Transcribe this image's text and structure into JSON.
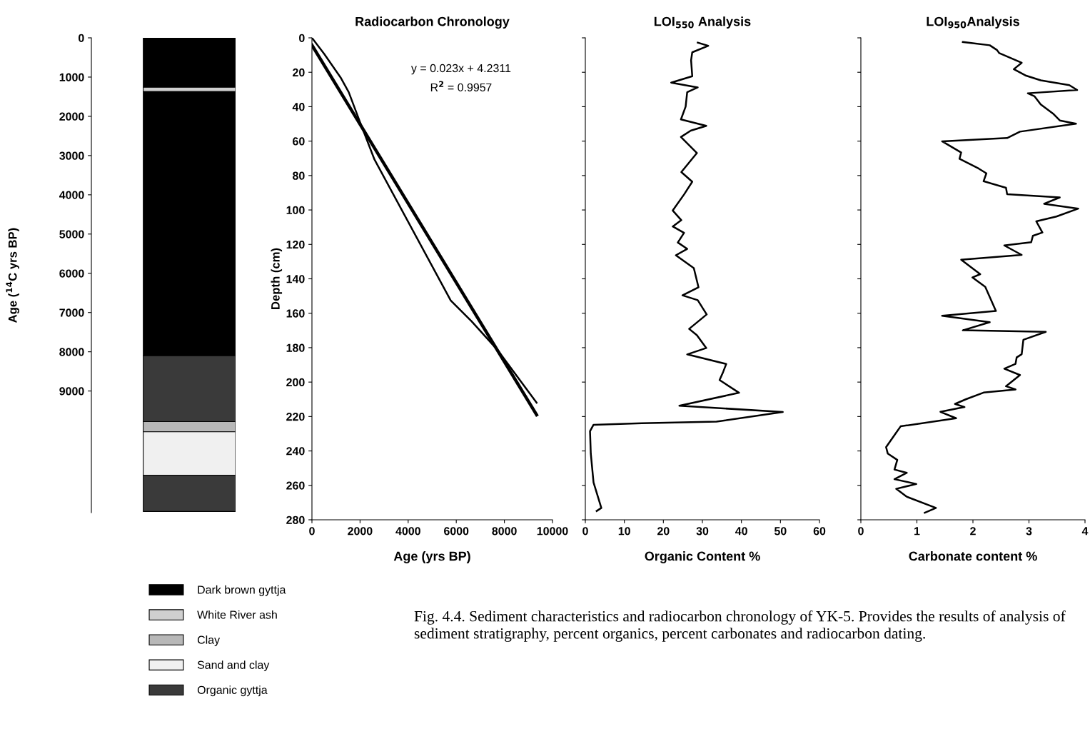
{
  "chart_data": [
    {
      "type": "bar",
      "stacked": true,
      "categories": [
        null
      ],
      "ylabel": "Age ($^{14}$C yrs BP)",
      "ylim": [
        12100,
        0
      ],
      "yticks": [
        0,
        1000,
        2000,
        3000,
        4000,
        5000,
        6000,
        7000,
        8000,
        9000
      ],
      "tick_labels": "y",
      "legend": "bottom",
      "series": [
        {
          "name": "Dark brown gyttja",
          "color": "#000000",
          "values": [
            1260
          ]
        },
        {
          "name": "White River ash",
          "color": "#d0d0d0",
          "values": [
            110
          ]
        },
        {
          "color": "#000000",
          "values": [
            6730
          ]
        },
        {
          "color": "#3a3a3a",
          "values": [
            1680
          ]
        },
        {
          "name": "Clay",
          "color": "#b8b8b8",
          "values": [
            260
          ]
        },
        {
          "name": "Sand and clay",
          "color": "#f0f0f0",
          "values": [
            1110
          ]
        },
        {
          "name": "Organic gyttja",
          "color": "#3a3a3a",
          "values": [
            920
          ]
        }
      ]
    },
    {
      "type": "line",
      "title": "Radiocarbon Chronology",
      "xlabel": "Age (yrs BP)",
      "ylabel": "Depth (cm)",
      "xlim": [
        0,
        10000
      ],
      "xticks": [
        0,
        2000,
        4000,
        6000,
        8000,
        10000
      ],
      "ylim": [
        280,
        0
      ],
      "yticks": [
        0,
        20,
        40,
        60,
        80,
        100,
        120,
        140,
        160,
        180,
        200,
        220,
        240,
        260,
        280
      ],
      "annotations": [
        "y = 0.023x + 4.2311",
        "R$^{2}$ = 0.9957"
      ],
      "series": [
        {
          "color": "#000000",
          "x": [
            0,
            510,
            1190,
            1530,
            2000,
            2600,
            5770,
            6640,
            7720,
            9340
          ],
          "values": [
            0,
            9.3,
            23,
            31.6,
            49,
            70.7,
            152.6,
            164.7,
            181.4,
            212
          ]
        },
        {
          "color": "#000000",
          "x": [
            0,
            9340
          ],
          "values": [
            4.2,
            219
          ]
        }
      ]
    },
    {
      "type": "line",
      "title": "LOI$_{550}$ Analysis",
      "xlabel": "Organic Content %",
      "xlim": [
        0,
        60
      ],
      "xticks": [
        0,
        10,
        20,
        30,
        40,
        50,
        60
      ],
      "ylim": [
        280,
        0
      ],
      "yticks": [
        0,
        20,
        40,
        60,
        80,
        100,
        120,
        140,
        160,
        180,
        200,
        220,
        240,
        260,
        280
      ],
      "tick_labels": "x",
      "series": [
        {
          "color": "#000000",
          "x": [
            28.8,
            31.5,
            27.4,
            27.1,
            27.4,
            22.0,
            28.8,
            26.1,
            25.7,
            24.5,
            31.0,
            27.0,
            24.5,
            28.6,
            24.6,
            27.4,
            25.3,
            22.4,
            24.6,
            22.4,
            25.3,
            23.7,
            26.1,
            23.2,
            27.8,
            29.0,
            24.9,
            28.8,
            31.1,
            26.6,
            28.6,
            31.0,
            26.1,
            36.1,
            35.3,
            34.4,
            39.4,
            24.1,
            50.6,
            33.6,
            14.5,
            2.1,
            1.2,
            1.4,
            2.1,
            4.1,
            2.9
          ],
          "values": [
            2.8,
            4.6,
            8.4,
            13,
            22.3,
            26,
            28.8,
            31.6,
            40,
            47.4,
            51.1,
            53.9,
            57.6,
            66.9,
            78,
            83.6,
            91,
            100.3,
            105.9,
            109.6,
            113.3,
            118.9,
            122.6,
            126.3,
            133.8,
            144.9,
            149.6,
            152.4,
            160.7,
            169.1,
            172.8,
            180.2,
            183.9,
            189.5,
            194.2,
            198.8,
            206.2,
            213.7,
            217.4,
            223,
            223.9,
            224.8,
            228.5,
            241.5,
            258.3,
            273.1,
            274.9
          ]
        }
      ]
    },
    {
      "type": "line",
      "title": "LOI$_{950}$Analysis",
      "xlabel": "Carbonate content %",
      "xlim": [
        0,
        4
      ],
      "xticks": [
        0,
        1,
        2,
        3,
        4
      ],
      "ylim": [
        280,
        0
      ],
      "yticks": [
        0,
        20,
        40,
        60,
        80,
        100,
        120,
        140,
        160,
        180,
        200,
        220,
        240,
        260,
        280
      ],
      "tick_labels": "x",
      "annotations": [
        "Fig. 4.4. Sediment characteristics and radiocarbon chronology of YK-5. Provides the results of analysis of sediment stratigraphy, percent organics, percent carbonates and radiocarbon dating."
      ],
      "series": [
        {
          "color": "#000000",
          "x": [
            1.82,
            2.3,
            2.43,
            2.47,
            2.87,
            2.73,
            2.95,
            3.21,
            3.72,
            3.86,
            2.98,
            3.1,
            3.21,
            3.44,
            3.55,
            3.84,
            2.84,
            2.61,
            1.45,
            1.79,
            1.76,
            2.1,
            2.24,
            2.19,
            2.59,
            2.61,
            3.55,
            3.27,
            3.88,
            3.49,
            3.13,
            3.24,
            3.07,
            3.04,
            2.56,
            2.87,
            1.79,
            2.13,
            1.99,
            2.22,
            2.41,
            1.45,
            2.3,
            1.82,
            3.3,
            2.9,
            2.87,
            2.78,
            2.76,
            2.56,
            2.84,
            2.59,
            2.76,
            2.19,
            1.88,
            1.68,
            1.85,
            1.42,
            1.7,
            0.71,
            0.63,
            0.45,
            0.48,
            0.65,
            0.6,
            0.82,
            0.6,
            0.99,
            0.63,
            0.82,
            1.34,
            1.14
          ],
          "values": [
            2.4,
            4.3,
            7.1,
            8.9,
            14.5,
            18.2,
            22.0,
            24.7,
            27.5,
            30.3,
            32.2,
            34.0,
            38.7,
            44.3,
            48.0,
            49.9,
            54.5,
            58.2,
            60.1,
            66.6,
            70.3,
            75.9,
            78.7,
            83.3,
            87.1,
            90.8,
            92.7,
            96.4,
            99.2,
            103.8,
            106.6,
            113.1,
            115.0,
            118.7,
            120.6,
            126.1,
            128.9,
            137.3,
            139.2,
            144.7,
            158.7,
            161.5,
            165.2,
            169.9,
            170.8,
            175.4,
            183.8,
            185.7,
            189.4,
            192.2,
            195.9,
            202.4,
            204.3,
            206.1,
            209.9,
            212.7,
            214.5,
            217.3,
            221.0,
            225.7,
            229.4,
            237.8,
            241.5,
            245.2,
            250.8,
            252.7,
            256.4,
            259.2,
            262.0,
            266.6,
            273.1,
            275.9
          ]
        }
      ]
    }
  ]
}
